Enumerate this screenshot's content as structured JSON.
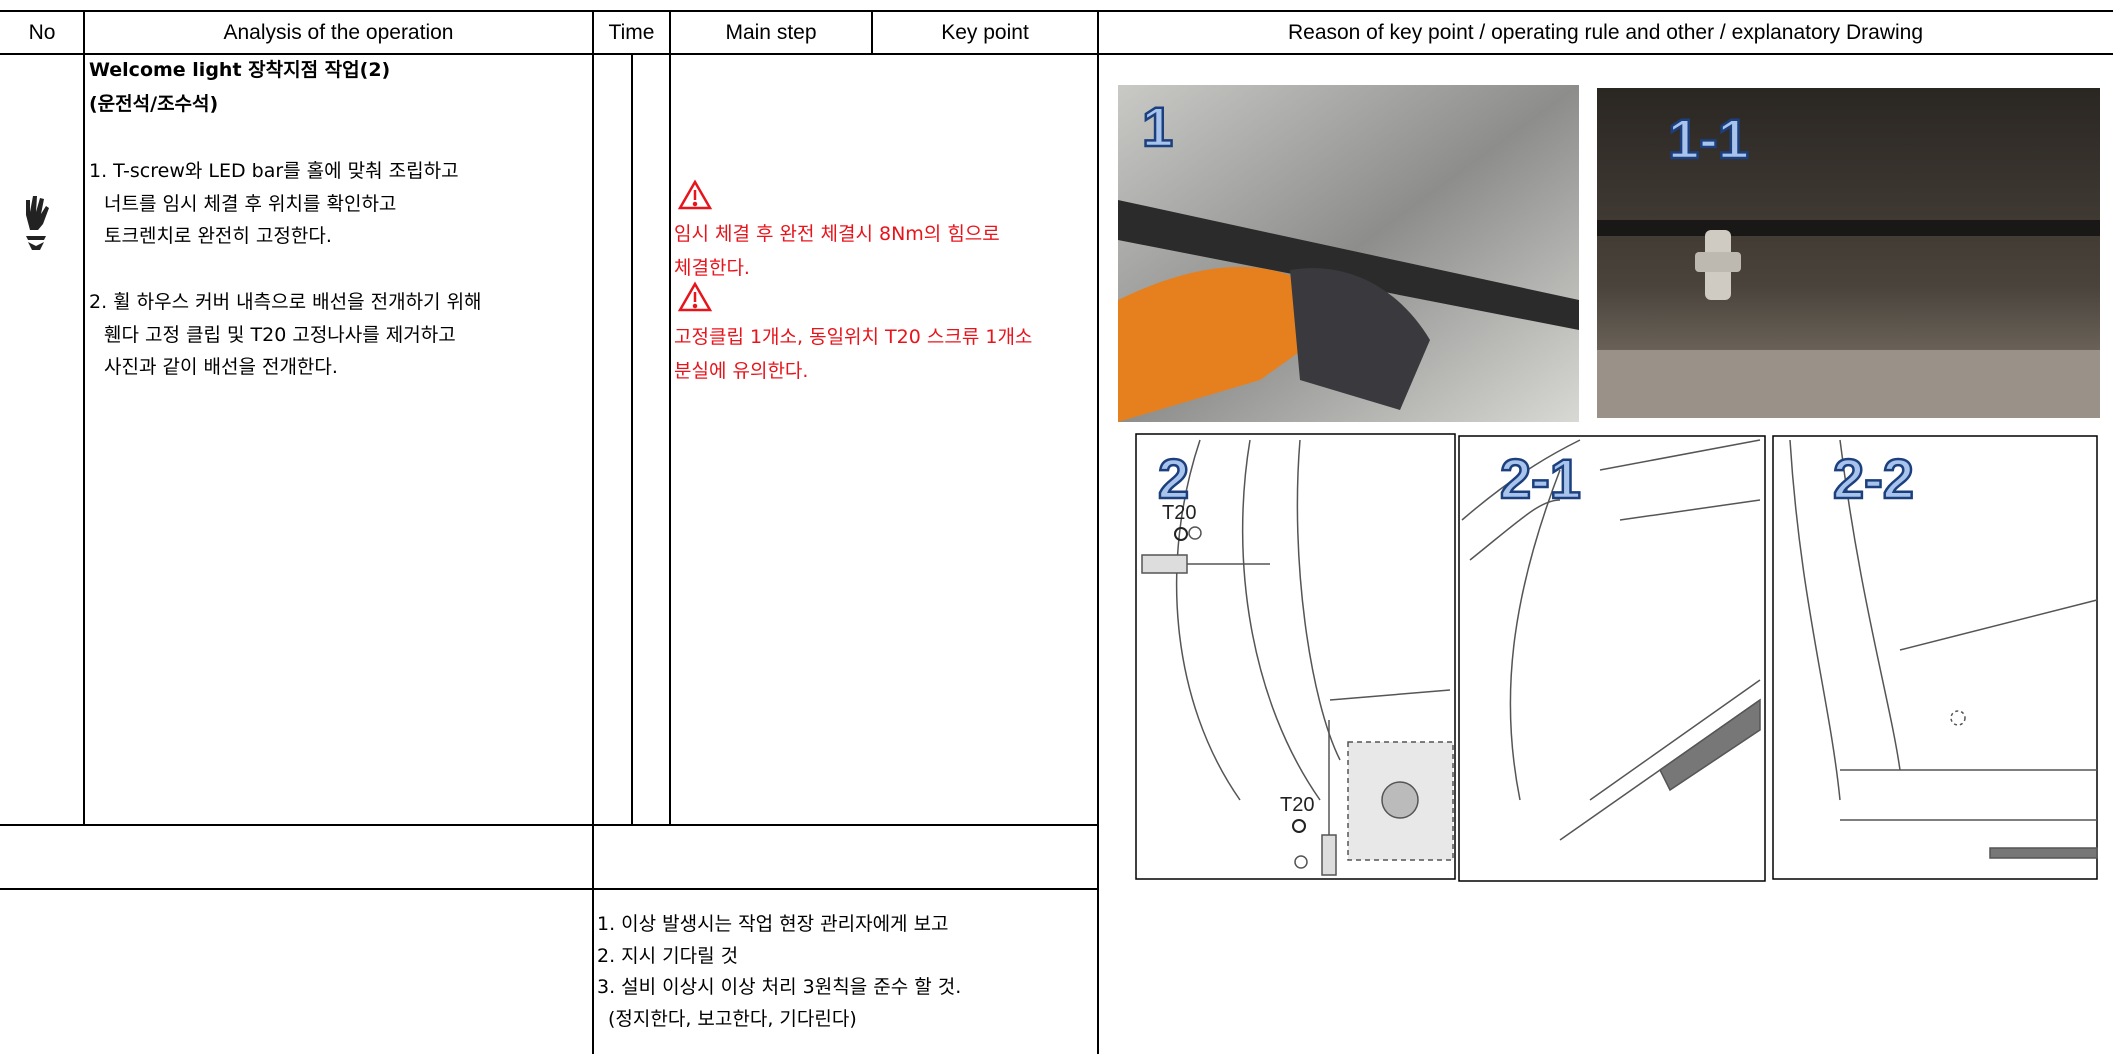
{
  "header": {
    "columns": [
      "No",
      "Analysis of the operation",
      "Time",
      "Main step",
      "Key point",
      "Reason of key point / operating rule and other / explanatory Drawing"
    ]
  },
  "operation": {
    "title": [
      "Welcome light 장착지점 작업(2)",
      "(운전석/조수석)"
    ],
    "steps": [
      [
        "1. T-screw와 LED bar를 홀에 맞춰 조립하고",
        "너트를 임시 체결 후 위치를 확인하고",
        "토크렌치로 완전히 고정한다."
      ],
      [
        "2. 휠 하우스 커버 내측으로 배선을 전개하기 위해",
        "휀다 고정 클립 및 T20 고정나사를 제거하고",
        "사진과 같이 배선을 전개한다."
      ]
    ]
  },
  "key_point": {
    "warnings": [
      [
        "임시 체결 후 완전 체결시 8Nm의 힘으로",
        "체결한다."
      ],
      [
        "고정클립 1개소, 동일위치 T20 스크류 1개소",
        "분실에 유의한다."
      ]
    ]
  },
  "abnormality": {
    "lines": [
      "1. 이상 발생시는 작업 현장 관리자에게 보고",
      "2. 지시 기다릴 것",
      "3. 설비 이상시 이상 처리 3원칙을 준수 할 것.",
      "(정지한다, 보고한다, 기다린다)"
    ]
  },
  "figures": [
    {
      "label": "1"
    },
    {
      "label": "1-1"
    },
    {
      "label": "2",
      "callouts": [
        "T20",
        "T20"
      ]
    },
    {
      "label": "2-1"
    },
    {
      "label": "2-2"
    }
  ]
}
